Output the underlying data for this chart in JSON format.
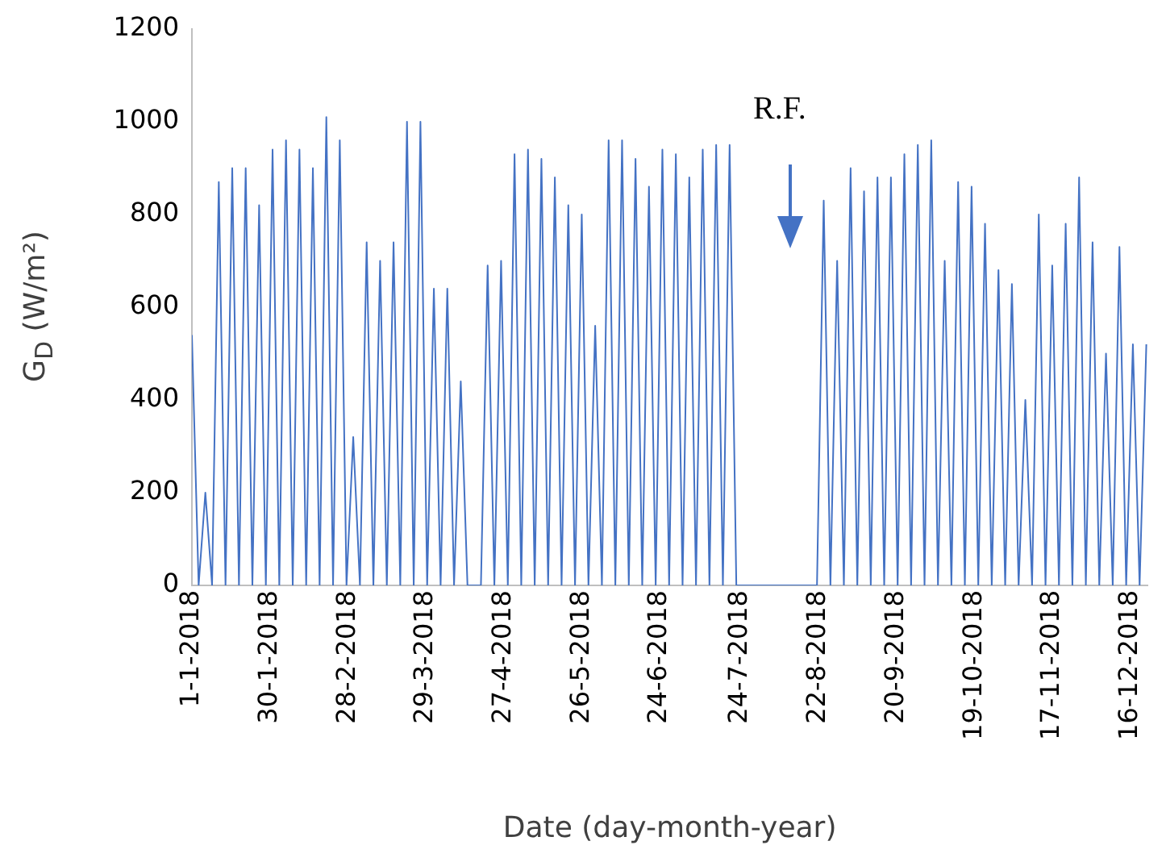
{
  "chart_data": {
    "type": "line",
    "xlabel": "Date (day-month-year)",
    "ylabel": "G$_{D}$ (W/m²)",
    "annotations": [
      "R.F."
    ],
    "xlim": [
      "2018-01-01",
      "2018-12-22T12:00"
    ],
    "xticks": [
      {
        "value": "2018-01-01",
        "label": "1-1-2018"
      },
      {
        "value": "2018-01-30",
        "label": "30-1-2018"
      },
      {
        "value": "2018-02-28",
        "label": "28-2-2018"
      },
      {
        "value": "2018-03-29",
        "label": "29-3-2018"
      },
      {
        "value": "2018-04-27",
        "label": "27-4-2018"
      },
      {
        "value": "2018-05-26",
        "label": "26-5-2018"
      },
      {
        "value": "2018-06-24",
        "label": "24-6-2018"
      },
      {
        "value": "2018-07-24",
        "label": "24-7-2018"
      },
      {
        "value": "2018-08-22",
        "label": "22-8-2018"
      },
      {
        "value": "2018-09-20",
        "label": "20-9-2018"
      },
      {
        "value": "2018-10-19",
        "label": "19-10-2018"
      },
      {
        "value": "2018-11-17",
        "label": "17-11-2018"
      },
      {
        "value": "2018-12-16",
        "label": "16-12-2018"
      }
    ],
    "ylim": [
      0,
      1200
    ],
    "yticks": [
      0,
      200,
      400,
      600,
      800,
      1000,
      1200
    ],
    "grid": false,
    "legend": false,
    "marker": "none",
    "line_style": "solid",
    "series": [
      {
        "color": "#4472c4",
        "x": [
          "2018-01-01",
          "2018-01-03T12:00",
          "2018-01-06",
          "2018-01-08T12:00",
          "2018-01-11",
          "2018-01-13T12:00",
          "2018-01-16",
          "2018-01-18T12:00",
          "2018-01-21",
          "2018-01-23T12:00",
          "2018-01-26",
          "2018-01-28T12:00",
          "2018-01-31",
          "2018-02-02T12:00",
          "2018-02-05",
          "2018-02-07T12:00",
          "2018-02-10",
          "2018-02-12T12:00",
          "2018-02-15",
          "2018-02-17T12:00",
          "2018-02-20",
          "2018-02-22T12:00",
          "2018-02-25",
          "2018-02-27T12:00",
          "2018-03-02",
          "2018-03-04T12:00",
          "2018-03-07",
          "2018-03-09T12:00",
          "2018-03-12",
          "2018-03-14T12:00",
          "2018-03-17",
          "2018-03-19T12:00",
          "2018-03-22",
          "2018-03-24T12:00",
          "2018-03-27",
          "2018-03-29T12:00",
          "2018-04-01",
          "2018-04-03T12:00",
          "2018-04-06",
          "2018-04-08T12:00",
          "2018-04-11",
          "2018-04-13T12:00",
          "2018-04-16",
          "2018-04-18T12:00",
          "2018-04-21",
          "2018-04-23T12:00",
          "2018-04-26",
          "2018-04-28T12:00",
          "2018-05-01",
          "2018-05-03T12:00",
          "2018-05-06",
          "2018-05-08T12:00",
          "2018-05-11",
          "2018-05-13T12:00",
          "2018-05-16",
          "2018-05-18T12:00",
          "2018-05-21",
          "2018-05-23T12:00",
          "2018-05-26",
          "2018-05-28T12:00",
          "2018-05-31",
          "2018-06-02T12:00",
          "2018-06-05",
          "2018-06-07T12:00",
          "2018-06-10",
          "2018-06-12T12:00",
          "2018-06-15",
          "2018-06-17T12:00",
          "2018-06-20",
          "2018-06-22T12:00",
          "2018-06-25",
          "2018-06-27T12:00",
          "2018-06-30",
          "2018-07-02T12:00",
          "2018-07-05",
          "2018-07-07T12:00",
          "2018-07-10",
          "2018-07-12T12:00",
          "2018-07-15",
          "2018-07-17T12:00",
          "2018-07-20",
          "2018-07-22T12:00",
          "2018-07-25",
          "2018-07-27T12:00",
          "2018-07-30",
          "2018-08-01T12:00",
          "2018-08-04",
          "2018-08-06T12:00",
          "2018-08-09",
          "2018-08-11T12:00",
          "2018-08-14",
          "2018-08-16T12:00",
          "2018-08-19",
          "2018-08-21T12:00",
          "2018-08-24",
          "2018-08-26T12:00",
          "2018-08-29",
          "2018-08-31T12:00",
          "2018-09-03",
          "2018-09-05T12:00",
          "2018-09-08",
          "2018-09-10T12:00",
          "2018-09-13",
          "2018-09-15T12:00",
          "2018-09-18",
          "2018-09-20T12:00",
          "2018-09-23",
          "2018-09-25T12:00",
          "2018-09-28",
          "2018-09-30T12:00",
          "2018-10-03",
          "2018-10-05T12:00",
          "2018-10-08",
          "2018-10-10T12:00",
          "2018-10-13",
          "2018-10-15T12:00",
          "2018-10-18",
          "2018-10-20T12:00",
          "2018-10-23",
          "2018-10-25T12:00",
          "2018-10-28",
          "2018-10-30T12:00",
          "2018-11-02",
          "2018-11-04T12:00",
          "2018-11-07",
          "2018-11-09T12:00",
          "2018-11-12",
          "2018-11-14T12:00",
          "2018-11-17",
          "2018-11-19T12:00",
          "2018-11-22",
          "2018-11-24T12:00",
          "2018-11-27",
          "2018-11-29T12:00",
          "2018-12-02",
          "2018-12-04T12:00",
          "2018-12-07",
          "2018-12-09T12:00",
          "2018-12-12",
          "2018-12-14T12:00",
          "2018-12-17",
          "2018-12-19T12:00",
          "2018-12-22"
        ],
        "values": [
          540,
          0,
          200,
          0,
          870,
          0,
          900,
          0,
          900,
          0,
          820,
          0,
          940,
          0,
          960,
          0,
          940,
          0,
          900,
          0,
          1010,
          0,
          960,
          0,
          320,
          0,
          740,
          0,
          700,
          0,
          740,
          0,
          1000,
          0,
          1000,
          0,
          640,
          0,
          640,
          0,
          440,
          0,
          0,
          0,
          690,
          0,
          700,
          0,
          930,
          0,
          940,
          0,
          920,
          0,
          880,
          0,
          820,
          0,
          800,
          0,
          560,
          0,
          960,
          0,
          960,
          0,
          920,
          0,
          860,
          0,
          940,
          0,
          930,
          0,
          880,
          0,
          940,
          0,
          950,
          0,
          950,
          0,
          0,
          0,
          0,
          0,
          0,
          0,
          0,
          0,
          0,
          0,
          0,
          0,
          830,
          0,
          700,
          0,
          900,
          0,
          850,
          0,
          880,
          0,
          880,
          0,
          930,
          0,
          950,
          0,
          960,
          0,
          700,
          0,
          870,
          0,
          860,
          0,
          780,
          0,
          680,
          0,
          650,
          0,
          400,
          0,
          800,
          0,
          690,
          0,
          780,
          0,
          880,
          0,
          740,
          0,
          500,
          0,
          730,
          0,
          520,
          0,
          520
        ]
      }
    ]
  }
}
